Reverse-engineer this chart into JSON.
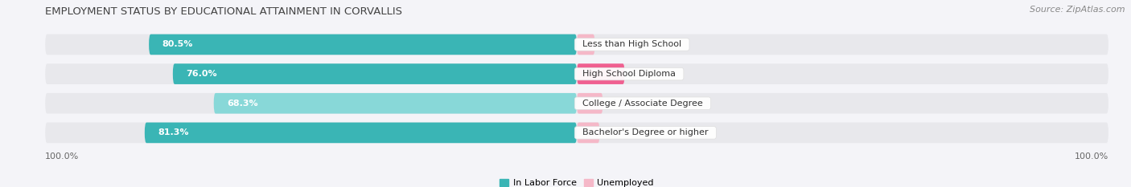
{
  "title": "EMPLOYMENT STATUS BY EDUCATIONAL ATTAINMENT IN CORVALLIS",
  "source": "Source: ZipAtlas.com",
  "categories": [
    "Less than High School",
    "High School Diploma",
    "College / Associate Degree",
    "Bachelor's Degree or higher"
  ],
  "labor_force": [
    80.5,
    76.0,
    68.3,
    81.3
  ],
  "unemployed": [
    3.4,
    9.0,
    4.9,
    4.3
  ],
  "labor_force_color": "#3ab5b5",
  "labor_force_color_light": "#88d8d8",
  "unemployed_color_row0": "#f5b8c8",
  "unemployed_color_row1": "#f06090",
  "unemployed_color_row2": "#f5b8c8",
  "unemployed_color_row3": "#f5b8c8",
  "track_color": "#e8e8ec",
  "background_color": "#f4f4f8",
  "bar_height": 0.7,
  "total_width": 100.0,
  "legend_items": [
    "In Labor Force",
    "Unemployed"
  ],
  "left_label": "100.0%",
  "right_label": "100.0%",
  "title_fontsize": 9.5,
  "label_fontsize": 8,
  "tick_fontsize": 8,
  "source_fontsize": 8,
  "category_fontsize": 8,
  "pct_fontsize": 8
}
